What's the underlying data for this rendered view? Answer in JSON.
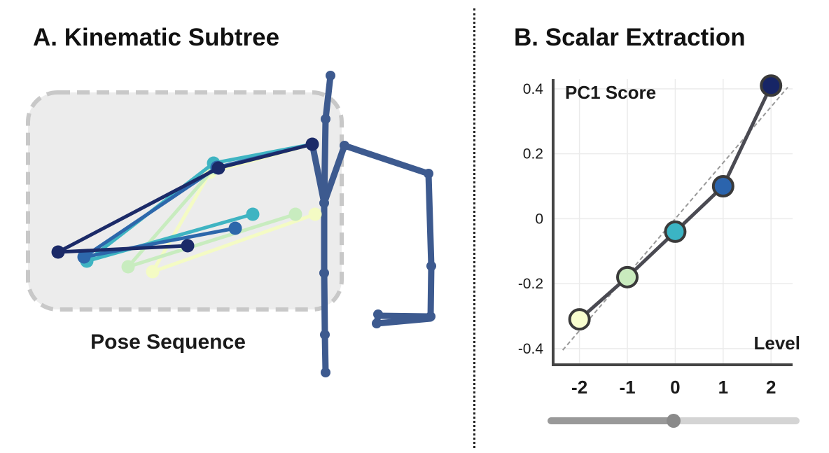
{
  "panel_a": {
    "title": "A. Kinematic Subtree",
    "caption": "Pose Sequence",
    "colors": {
      "box_fill": "#ececec",
      "box_stroke": "#c8c8c8",
      "skeleton": "#3d5a8f",
      "frame_shades": [
        "#f4fbc4",
        "#c8ecbf",
        "#3fb4c2",
        "#2d67ab",
        "#1b2a68"
      ]
    }
  },
  "panel_b": {
    "title": "B. Scalar Extraction",
    "colors": {
      "line": "#4a4a52",
      "trend": "#999999",
      "point_shades": [
        "#f8fdcf",
        "#c9ebbe",
        "#3bb4c4",
        "#2b64ad",
        "#172566"
      ],
      "slider_track": "#d4d4d4",
      "slider_fill": "#999999",
      "slider_thumb": "#8a8a8a"
    },
    "slider_value": 0.5
  },
  "chart_data": {
    "type": "line",
    "xlabel": "Level",
    "ylabel": "PC1 Score",
    "x": [
      -2,
      -1,
      0,
      1,
      2
    ],
    "y": [
      -0.31,
      -0.18,
      -0.04,
      0.1,
      0.41
    ],
    "xticks": [
      "-2",
      "-1",
      "0",
      "1",
      "2"
    ],
    "yticks": [
      "-0.4",
      "-0.2",
      "0",
      "0.2",
      "0.4"
    ],
    "ytick_values": [
      -0.4,
      -0.2,
      0,
      0.2,
      0.4
    ],
    "xlim": [
      -2.55,
      2.45
    ],
    "ylim": [
      -0.45,
      0.43
    ],
    "trend": [
      [
        -2.35,
        -0.405
      ],
      [
        2.35,
        0.405
      ]
    ],
    "grid": true
  }
}
